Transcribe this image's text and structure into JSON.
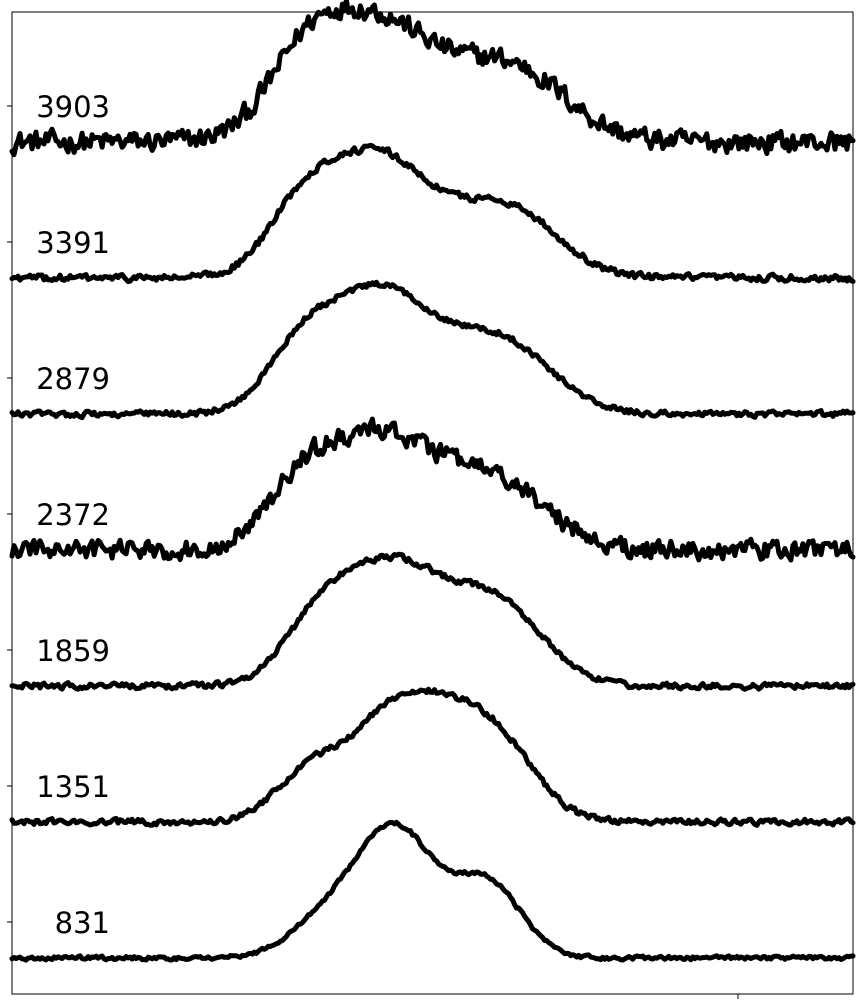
{
  "chart_data": {
    "type": "line",
    "title": "",
    "xlabel": "",
    "ylabel": "",
    "grid": false,
    "legend": "none",
    "line_color": "#000000",
    "xlim": [
      0,
      100
    ],
    "y_offset_step": 1,
    "series": [
      {
        "label": "3903",
        "offset": 6,
        "noise": 0.11,
        "baseline_tilt": 0.0,
        "peaks": [
          {
            "center": 42.5,
            "height": 0.92,
            "width": 7.5
          },
          {
            "center": 59.5,
            "height": 0.52,
            "width": 6.5
          },
          {
            "center": 34.5,
            "height": 0.3,
            "width": 4.0
          }
        ]
      },
      {
        "label": "3391",
        "offset": 5,
        "noise": 0.035,
        "baseline_tilt": 0.0,
        "peaks": [
          {
            "center": 43.0,
            "height": 0.92,
            "width": 6.8
          },
          {
            "center": 59.0,
            "height": 0.5,
            "width": 5.8
          },
          {
            "center": 34.0,
            "height": 0.3,
            "width": 3.8
          }
        ]
      },
      {
        "label": "2879",
        "offset": 4,
        "noise": 0.03,
        "baseline_tilt": 0.0,
        "peaks": [
          {
            "center": 43.5,
            "height": 0.92,
            "width": 6.8
          },
          {
            "center": 58.5,
            "height": 0.5,
            "width": 5.8
          },
          {
            "center": 34.0,
            "height": 0.3,
            "width": 3.8
          }
        ]
      },
      {
        "label": "2372",
        "offset": 3,
        "noise": 0.1,
        "baseline_tilt": 0.0,
        "peaks": [
          {
            "center": 43.5,
            "height": 0.85,
            "width": 7.0
          },
          {
            "center": 58.0,
            "height": 0.45,
            "width": 6.0
          },
          {
            "center": 34.0,
            "height": 0.3,
            "width": 3.8
          }
        ]
      },
      {
        "label": "1859",
        "offset": 2,
        "noise": 0.03,
        "baseline_tilt": 0.0,
        "peaks": [
          {
            "center": 45.0,
            "height": 0.9,
            "width": 6.5
          },
          {
            "center": 58.0,
            "height": 0.55,
            "width": 5.3
          },
          {
            "center": 36.0,
            "height": 0.3,
            "width": 4.0
          }
        ]
      },
      {
        "label": "1351",
        "offset": 1,
        "noise": 0.03,
        "baseline_tilt": 0.0,
        "peaks": [
          {
            "center": 46.5,
            "height": 0.88,
            "width": 6.0
          },
          {
            "center": 57.0,
            "height": 0.58,
            "width": 5.0
          },
          {
            "center": 35.0,
            "height": 0.3,
            "width": 4.0
          }
        ]
      },
      {
        "label": "831",
        "offset": 0,
        "noise": 0.02,
        "baseline_tilt": 0.0,
        "peaks": [
          {
            "center": 45.5,
            "height": 0.95,
            "width": 4.6
          },
          {
            "center": 56.5,
            "height": 0.55,
            "width": 4.0
          },
          {
            "center": 37.0,
            "height": 0.25,
            "width": 4.2
          }
        ]
      }
    ]
  }
}
